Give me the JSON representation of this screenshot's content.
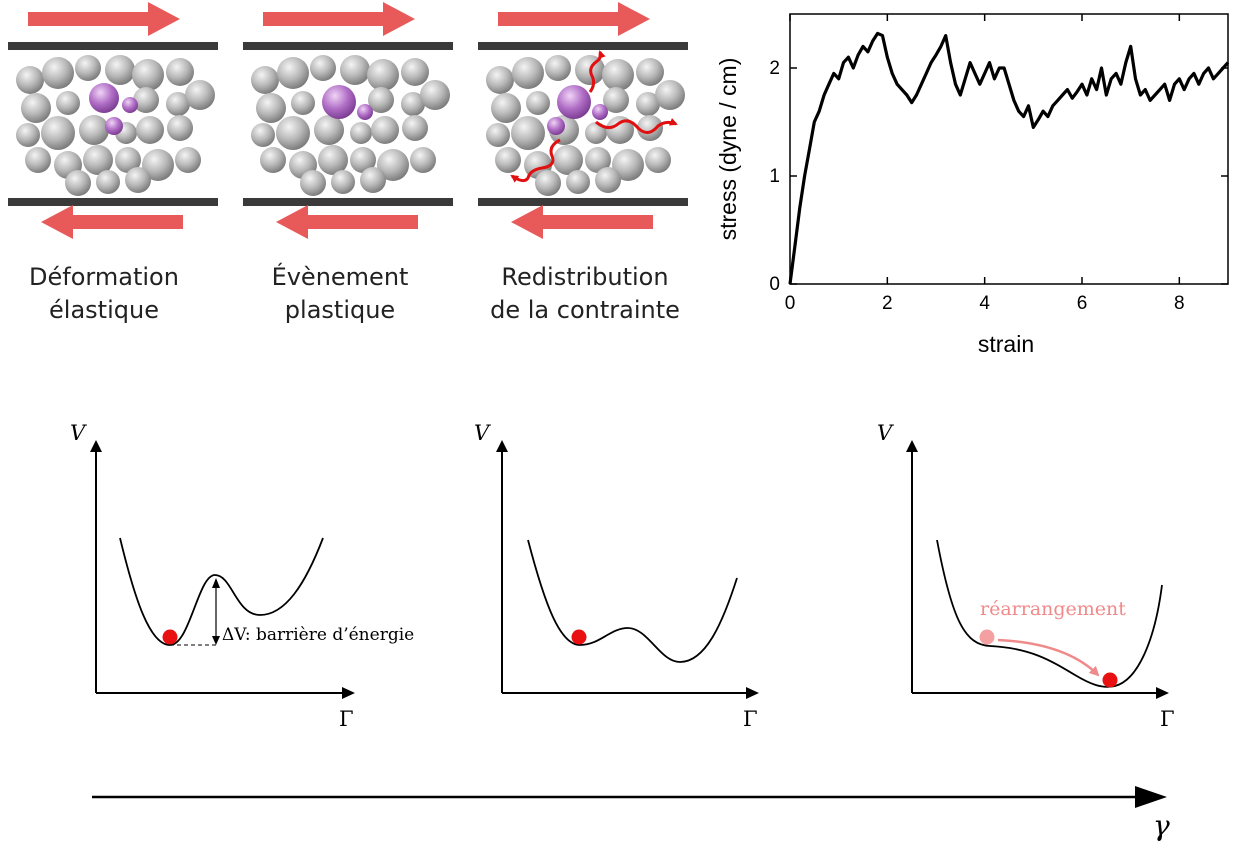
{
  "panels": [
    {
      "line1": "Déformation",
      "line2": "élastique"
    },
    {
      "line1": "Évènement",
      "line2": "plastique"
    },
    {
      "line1": "Redistribution",
      "line2": "de la contrainte"
    }
  ],
  "colors": {
    "shear_arrow": "#e85a5a",
    "plate": "#3a3a3a",
    "particle": "#b4b4b4",
    "particle_purple": "#a865c0",
    "stress_wave": "#e01010",
    "minimum_dot": "#e81010",
    "rearrangement": "#f08a8a"
  },
  "chart_data": {
    "type": "line",
    "xlabel": "strain",
    "ylabel": "stress (dyne / cm)",
    "xlim": [
      0,
      9
    ],
    "ylim": [
      0,
      2.5
    ],
    "xticks": [
      "0",
      "2",
      "4",
      "6",
      "8"
    ],
    "yticks": [
      "0",
      "1",
      "2"
    ],
    "grid": false,
    "series": [
      {
        "x": [
          0,
          0.1,
          0.2,
          0.3,
          0.4,
          0.5,
          0.6,
          0.7,
          0.8,
          0.9,
          1.0,
          1.1,
          1.2,
          1.3,
          1.4,
          1.5,
          1.6,
          1.7,
          1.8,
          1.9,
          2.0,
          2.1,
          2.2,
          2.3,
          2.4,
          2.5,
          2.6,
          2.7,
          2.8,
          2.9,
          3.0,
          3.1,
          3.2,
          3.3,
          3.4,
          3.5,
          3.6,
          3.7,
          3.8,
          3.9,
          4.0,
          4.1,
          4.2,
          4.3,
          4.4,
          4.5,
          4.6,
          4.7,
          4.8,
          4.9,
          5.0,
          5.1,
          5.2,
          5.3,
          5.4,
          5.5,
          5.6,
          5.7,
          5.8,
          5.9,
          6.0,
          6.1,
          6.2,
          6.3,
          6.4,
          6.5,
          6.6,
          6.7,
          6.8,
          6.9,
          7.0,
          7.1,
          7.2,
          7.3,
          7.4,
          7.5,
          7.6,
          7.7,
          7.8,
          7.9,
          8.0,
          8.1,
          8.2,
          8.3,
          8.4,
          8.5,
          8.6,
          8.7,
          8.8,
          8.9,
          9.0
        ],
        "y": [
          0,
          0.35,
          0.7,
          1.0,
          1.25,
          1.5,
          1.6,
          1.75,
          1.85,
          1.95,
          1.9,
          2.05,
          2.1,
          2.0,
          2.12,
          2.2,
          2.15,
          2.25,
          2.32,
          2.3,
          2.1,
          1.95,
          1.85,
          1.8,
          1.75,
          1.68,
          1.75,
          1.85,
          1.95,
          2.05,
          2.12,
          2.2,
          2.3,
          2.05,
          1.85,
          1.75,
          1.9,
          2.05,
          1.95,
          1.85,
          1.95,
          2.05,
          1.9,
          2.0,
          2.0,
          1.85,
          1.7,
          1.6,
          1.55,
          1.65,
          1.45,
          1.52,
          1.6,
          1.55,
          1.65,
          1.7,
          1.75,
          1.8,
          1.72,
          1.78,
          1.85,
          1.75,
          1.9,
          1.8,
          2.0,
          1.75,
          1.9,
          1.95,
          1.85,
          2.05,
          2.2,
          1.9,
          1.75,
          1.8,
          1.7,
          1.75,
          1.8,
          1.85,
          1.7,
          1.85,
          1.9,
          1.8,
          1.9,
          1.95,
          1.85,
          1.95,
          2.0,
          1.9,
          1.95,
          2.0,
          2.05
        ]
      }
    ]
  },
  "potentials": [
    {
      "y_label": "V",
      "x_label": "Γ",
      "annotation": "ΔV: barrière d’énergie"
    },
    {
      "y_label": "V",
      "x_label": "Γ"
    },
    {
      "y_label": "V",
      "x_label": "Γ",
      "annotation": "réarrangement"
    }
  ],
  "gamma_axis": {
    "label": "γ"
  }
}
